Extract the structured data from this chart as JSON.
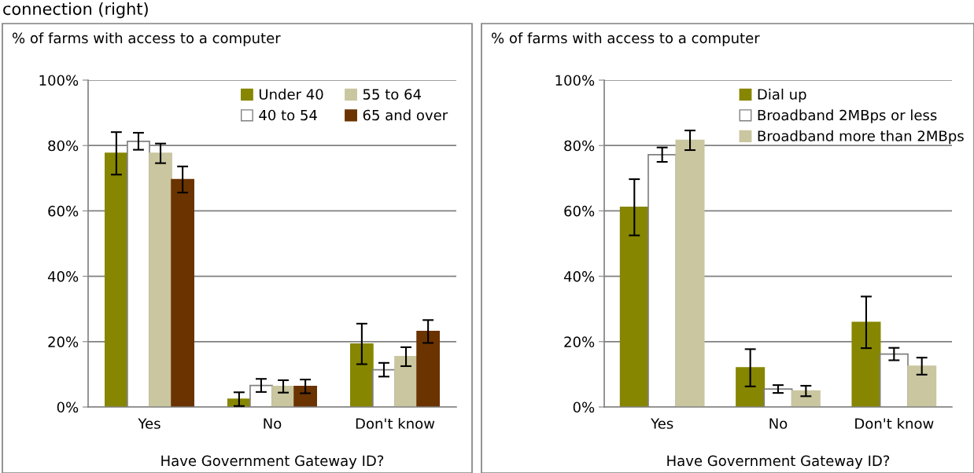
{
  "chart_data": [
    {
      "type": "bar",
      "ylabel": "% of farms with access to a computer",
      "xlabel": "Have Government Gateway ID?",
      "annotations": [
        "connection (right)"
      ],
      "categories": [
        "Yes",
        "No",
        "Don't know"
      ],
      "ylim": [
        0,
        100
      ],
      "yticks": [
        {
          "value": 0,
          "label": "0%"
        },
        {
          "value": 20,
          "label": "20%"
        },
        {
          "value": 40,
          "label": "40%"
        },
        {
          "value": 60,
          "label": "60%"
        },
        {
          "value": 80,
          "label": "80%"
        },
        {
          "value": 100,
          "label": "100%"
        }
      ],
      "grid": "y",
      "legend": "top right",
      "series": [
        {
          "name": "Under 40",
          "color": "#868600",
          "values": [
            77.6,
            2.4,
            19.3
          ],
          "errors": [
            6.5,
            2.1,
            6.2
          ]
        },
        {
          "name": "40 to 54",
          "color": "#ffffff",
          "values": [
            81.3,
            6.6,
            11.4
          ],
          "errors": [
            2.6,
            2.0,
            2.1
          ]
        },
        {
          "name": "55 to 64",
          "color": "#c9c6a0",
          "values": [
            77.6,
            6.3,
            15.4
          ],
          "errors": [
            3.0,
            1.9,
            2.9
          ]
        },
        {
          "name": "65 and over",
          "color": "#6b3300",
          "values": [
            69.6,
            6.3,
            23.1
          ],
          "errors": [
            4.0,
            2.1,
            3.5
          ]
        }
      ]
    },
    {
      "type": "bar",
      "ylabel": "% of farms with access to a computer",
      "xlabel": "Have Government Gateway ID?",
      "categories": [
        "Yes",
        "No",
        "Don't know"
      ],
      "ylim": [
        0,
        100
      ],
      "yticks": [
        {
          "value": 0,
          "label": "0%"
        },
        {
          "value": 20,
          "label": "20%"
        },
        {
          "value": 40,
          "label": "40%"
        },
        {
          "value": 60,
          "label": "60%"
        },
        {
          "value": 80,
          "label": "80%"
        },
        {
          "value": 100,
          "label": "100%"
        }
      ],
      "grid": "y",
      "legend": "top right",
      "series": [
        {
          "name": "Dial up",
          "color": "#868600",
          "values": [
            61.1,
            12.0,
            25.9
          ],
          "errors": [
            8.6,
            5.7,
            7.9
          ]
        },
        {
          "name": "Broadband 2MBps or less",
          "color": "#ffffff",
          "values": [
            77.2,
            5.5,
            16.2
          ],
          "errors": [
            2.2,
            1.2,
            1.9
          ]
        },
        {
          "name": "Broadband more than 2MBps",
          "color": "#c9c6a0",
          "values": [
            81.6,
            4.9,
            12.5
          ],
          "errors": [
            3.0,
            1.6,
            2.6
          ]
        }
      ]
    }
  ]
}
